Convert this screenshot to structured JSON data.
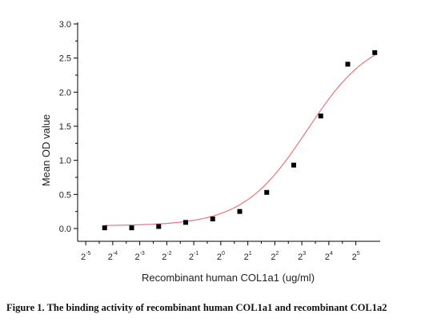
{
  "chart_data": {
    "type": "scatter",
    "xlabel": "Recombinant human  COL1a1  (ug/ml)",
    "ylabel": "Mean OD value",
    "ylim": [
      0,
      3.0
    ],
    "y_ticks": [
      "0.0",
      "0.5",
      "1.0",
      "1.5",
      "2.0",
      "2.5",
      "3.0"
    ],
    "x_ticks": [
      {
        "base": "2",
        "exp": "-5"
      },
      {
        "base": "2",
        "exp": "-4"
      },
      {
        "base": "2",
        "exp": "-3"
      },
      {
        "base": "2",
        "exp": "-2"
      },
      {
        "base": "2",
        "exp": "-1"
      },
      {
        "base": "2",
        "exp": "0"
      },
      {
        "base": "2",
        "exp": "1"
      },
      {
        "base": "2",
        "exp": "2"
      },
      {
        "base": "2",
        "exp": "3"
      },
      {
        "base": "2",
        "exp": "4"
      },
      {
        "base": "2",
        "exp": "5"
      }
    ],
    "x_log_base": 2,
    "xlim_log2": [
      -5.3,
      5.9
    ],
    "points": [
      {
        "x_log2": -4.3,
        "y": 0.01
      },
      {
        "x_log2": -3.3,
        "y": 0.01
      },
      {
        "x_log2": -2.3,
        "y": 0.03
      },
      {
        "x_log2": -1.3,
        "y": 0.09
      },
      {
        "x_log2": -0.3,
        "y": 0.14
      },
      {
        "x_log2": 0.7,
        "y": 0.25
      },
      {
        "x_log2": 1.7,
        "y": 0.53
      },
      {
        "x_log2": 2.7,
        "y": 0.93
      },
      {
        "x_log2": 3.7,
        "y": 1.65
      },
      {
        "x_log2": 4.7,
        "y": 2.41
      },
      {
        "x_log2": 5.7,
        "y": 2.58
      }
    ],
    "fit": {
      "model": "4PL",
      "bottom": 0.04,
      "top": 2.85,
      "ec50_log2": 3.2,
      "hill_slope": 0.55
    },
    "marker_color": "#000000",
    "fit_color": "#e8747c"
  },
  "caption": "Figure 1. The binding activity of recombinant human COL1a1 and recombinant COL1a2"
}
